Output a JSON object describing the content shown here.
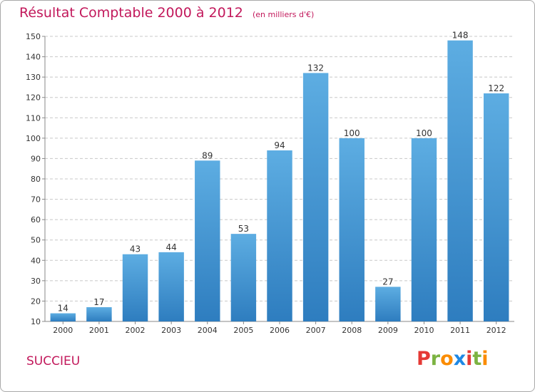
{
  "title": "Résultat Comptable 2000 à 2012",
  "unit": "(en milliers d'€)",
  "commune": "SUCCIEU",
  "logo": {
    "text": "Proxiti",
    "letters": [
      {
        "ch": "P",
        "color": "#e53935"
      },
      {
        "ch": "r",
        "color": "#7cb342"
      },
      {
        "ch": "o",
        "color": "#fb8c00"
      },
      {
        "ch": "x",
        "color": "#1e88e5"
      },
      {
        "ch": "i",
        "color": "#e53935"
      },
      {
        "ch": "t",
        "color": "#7cb342"
      },
      {
        "ch": "i",
        "color": "#fb8c00"
      }
    ]
  },
  "colors": {
    "bar_top": "#5dade2",
    "bar_bottom": "#2e7dbf",
    "title": "#c2185b",
    "grid": "#c8c8c8",
    "axis": "#888888",
    "text": "#333333"
  },
  "chart_data": {
    "type": "bar",
    "title": "Résultat Comptable 2000 à 2012",
    "subtitle": "(en milliers d'€)",
    "xlabel": "",
    "ylabel": "",
    "categories": [
      "2000",
      "2001",
      "2002",
      "2003",
      "2004",
      "2005",
      "2006",
      "2007",
      "2008",
      "2009",
      "2010",
      "2011",
      "2012"
    ],
    "values": [
      14,
      17,
      43,
      44,
      89,
      53,
      94,
      132,
      100,
      27,
      100,
      148,
      122
    ],
    "ylim": [
      10,
      150
    ],
    "yticks": [
      10,
      20,
      30,
      40,
      50,
      60,
      70,
      80,
      90,
      100,
      110,
      120,
      130,
      140,
      150
    ],
    "grid": true,
    "grid_style": "dashed",
    "data_labels": true,
    "legend": "none"
  }
}
